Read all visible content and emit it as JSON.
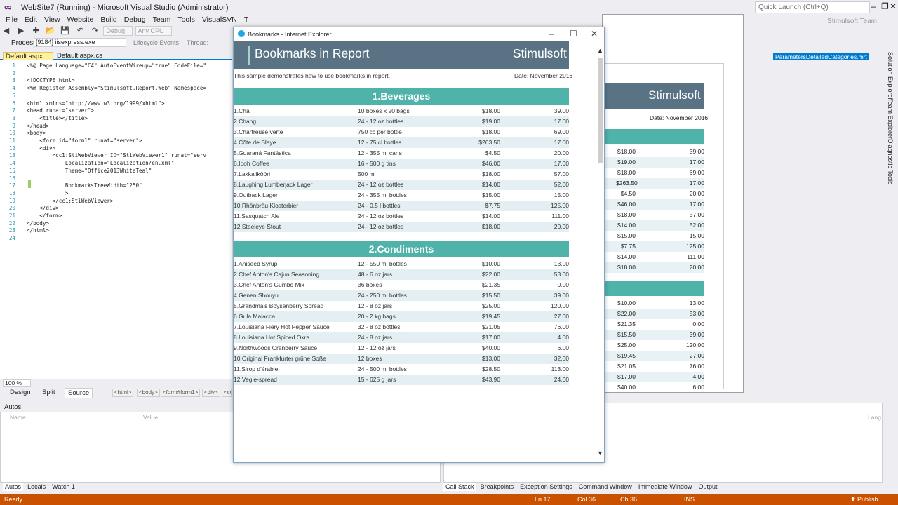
{
  "vs": {
    "title": "WebSite7 (Running) - Microsoft Visual Studio (Administrator)",
    "quick_launch_placeholder": "Quick Launch (Ctrl+Q)",
    "user": "Stimulsoft Team",
    "menu": [
      "File",
      "Edit",
      "View",
      "Website",
      "Build",
      "Debug",
      "Team",
      "Tools",
      "VisualSVN",
      "T"
    ],
    "toolbar": {
      "config": "Debug",
      "platform": "Any CPU"
    },
    "process_label": "Process:",
    "process_value": "[9184] iisexpress.exe",
    "lifecycle": "Lifecycle Events",
    "thread": "Thread:",
    "tabs": [
      "Default.aspx",
      "Default.aspx.cs"
    ],
    "right_tab": "ParametersDetailedCategories.mrt",
    "code_lines": [
      {
        "n": "1",
        "text": "<%@ Page Language=\"C#\" AutoEventWireup=\"true\" CodeFile=\""
      },
      {
        "n": "2",
        "text": ""
      },
      {
        "n": "3",
        "text": "<!DOCTYPE html>"
      },
      {
        "n": "4",
        "text": "<%@ Register Assembly=\"Stimulsoft.Report.Web\" Namespace="
      },
      {
        "n": "5",
        "text": ""
      },
      {
        "n": "6",
        "text": "<html xmlns=\"http://www.w3.org/1999/xhtml\">"
      },
      {
        "n": "7",
        "text": "<head runat=\"server\">"
      },
      {
        "n": "8",
        "text": "    <title></title>"
      },
      {
        "n": "9",
        "text": "</head>"
      },
      {
        "n": "10",
        "text": "<body>"
      },
      {
        "n": "11",
        "text": "    <form id=\"form1\" runat=\"server\">"
      },
      {
        "n": "12",
        "text": "    <div>"
      },
      {
        "n": "13",
        "text": "        <cc1:StiWebViewer ID=\"StiWebViewer1\" runat=\"serv"
      },
      {
        "n": "14",
        "text": "            Localization=\"Localization/en.xml\""
      },
      {
        "n": "15",
        "text": "            Theme=\"Office2013WhiteTeal\""
      },
      {
        "n": "16",
        "text": ""
      },
      {
        "n": "17",
        "text": "            BookmarksTreeWidth=\"250\""
      },
      {
        "n": "18",
        "text": "            >"
      },
      {
        "n": "19",
        "text": "        </cc1:StiWebViewer>"
      },
      {
        "n": "20",
        "text": "    </div>"
      },
      {
        "n": "21",
        "text": "    </form>"
      },
      {
        "n": "22",
        "text": "</body>"
      },
      {
        "n": "23",
        "text": "</html>"
      },
      {
        "n": "24",
        "text": ""
      }
    ],
    "zoom": "100 %",
    "views": [
      "Design",
      "Split",
      "Source"
    ],
    "breadcrumbs": [
      "<html>",
      "<body>",
      "<form#form1>",
      "<div>",
      "<cc"
    ],
    "autos": {
      "title": "Autos",
      "col_name": "Name",
      "col_value": "Value",
      "lang_col": "Lang"
    },
    "bottom_tabs_left": [
      "Autos",
      "Locals",
      "Watch 1"
    ],
    "bottom_tabs_right": [
      "Call Stack",
      "Breakpoints",
      "Exception Settings",
      "Command Window",
      "Immediate Window",
      "Output"
    ],
    "side_tabs": [
      "Solution Explorer",
      "Team Explorer",
      "Diagnostic Tools"
    ],
    "status": {
      "ready": "Ready",
      "ln": "Ln 17",
      "col": "Col 36",
      "ch": "Ch 36",
      "ins": "INS",
      "publish": "Publish"
    }
  },
  "ie": {
    "title": "Bookmarks - Internet Explorer",
    "report_title": "Bookmarks in Report",
    "brand": "Stimulsoft",
    "description": "This sample demonstrates how to use bookmarks in report.",
    "date": "Date: November 2016",
    "categories": [
      {
        "name": "1.Beverages",
        "rows": [
          [
            "1.Chai",
            "10 boxes x 20 bags",
            "$18.00",
            "39.00"
          ],
          [
            "2.Chang",
            "24 - 12 oz bottles",
            "$19.00",
            "17.00"
          ],
          [
            "3.Chartreuse verte",
            "750 cc per bottle",
            "$18.00",
            "69.00"
          ],
          [
            "4.Côte de Blaye",
            "12 - 75 cl bottles",
            "$263.50",
            "17.00"
          ],
          [
            "5.Guaraná Fantástica",
            "12 - 355 ml cans",
            "$4.50",
            "20.00"
          ],
          [
            "6.Ipoh Coffee",
            "16 - 500 g tins",
            "$46.00",
            "17.00"
          ],
          [
            "7.Lakkalikööri",
            "500 ml",
            "$18.00",
            "57.00"
          ],
          [
            "8.Laughing Lumberjack Lager",
            "24 - 12 oz bottles",
            "$14.00",
            "52.00"
          ],
          [
            "9.Outback Lager",
            "24 - 355 ml bottles",
            "$15.00",
            "15.00"
          ],
          [
            "10.Rhönbräu Klosterbier",
            "24 - 0.5 l bottles",
            "$7.75",
            "125.00"
          ],
          [
            "11.Sasquatch Ale",
            "24 - 12 oz bottles",
            "$14.00",
            "111.00"
          ],
          [
            "12.Steeleye Stout",
            "24 - 12 oz bottles",
            "$18.00",
            "20.00"
          ]
        ]
      },
      {
        "name": "2.Condiments",
        "rows": [
          [
            "1.Aniseed Syrup",
            "12 - 550 ml bottles",
            "$10.00",
            "13.00"
          ],
          [
            "2.Chef Anton's Cajun Seasoning",
            "48 - 6 oz jars",
            "$22.00",
            "53.00"
          ],
          [
            "3.Chef Anton's Gumbo Mix",
            "36 boxes",
            "$21.35",
            "0.00"
          ],
          [
            "4.Genen Shouyu",
            "24 - 250 ml bottles",
            "$15.50",
            "39.00"
          ],
          [
            "5.Grandma's Boysenberry Spread",
            "12 - 8 oz jars",
            "$25.00",
            "120.00"
          ],
          [
            "6.Gula Malacca",
            "20 - 2 kg bags",
            "$19.45",
            "27.00"
          ],
          [
            "7.Louisiana Fiery Hot Pepper Sauce",
            "32 - 8 oz bottles",
            "$21.05",
            "76.00"
          ],
          [
            "8.Louisiana Hot Spiced Okra",
            "24 - 8 oz jars",
            "$17.00",
            "4.00"
          ],
          [
            "9.Northwoods Cranberry Sauce",
            "12 - 12 oz jars",
            "$40.00",
            "6.00"
          ],
          [
            "10.Original Frankfurter grüne Soße",
            "12 boxes",
            "$13.00",
            "32.00"
          ],
          [
            "11.Sirop d'érable",
            "24 - 500 ml bottles",
            "$28.50",
            "113.00"
          ],
          [
            "12.Vegie-spread",
            "15 - 625 g jars",
            "$43.90",
            "24.00"
          ]
        ]
      }
    ]
  },
  "bg_report": {
    "brand": "Stimulsoft",
    "date": "Date: November 2016",
    "rows_top": [
      [
        "$18.00",
        "39.00"
      ],
      [
        "$19.00",
        "17.00"
      ],
      [
        "$18.00",
        "69.00"
      ],
      [
        "$263.50",
        "17.00"
      ],
      [
        "$4.50",
        "20.00"
      ],
      [
        "$46.00",
        "17.00"
      ],
      [
        "$18.00",
        "57.00"
      ],
      [
        "$14.00",
        "52.00"
      ],
      [
        "$15.00",
        "15.00"
      ],
      [
        "$7.75",
        "125.00"
      ],
      [
        "$14.00",
        "111.00"
      ],
      [
        "$18.00",
        "20.00"
      ]
    ],
    "rows_bottom": [
      [
        "$10.00",
        "13.00"
      ],
      [
        "$22.00",
        "53.00"
      ],
      [
        "$21.35",
        "0.00"
      ],
      [
        "$15.50",
        "39.00"
      ],
      [
        "$25.00",
        "120.00"
      ],
      [
        "$19.45",
        "27.00"
      ],
      [
        "$21.05",
        "76.00"
      ],
      [
        "$17.00",
        "4.00"
      ],
      [
        "$40.00",
        "6.00"
      ]
    ]
  }
}
